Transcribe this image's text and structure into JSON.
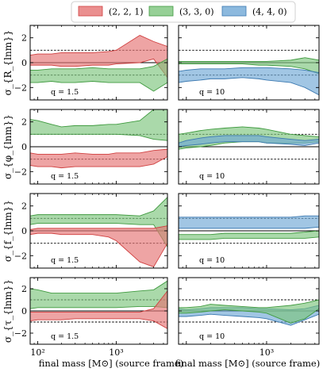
{
  "legend": {
    "entries": [
      {
        "label": "(2, 2, 1)",
        "color": "#e57373"
      },
      {
        "label": "(3, 3, 0)",
        "color": "#7cc47c"
      },
      {
        "label": "(4, 4, 0)",
        "color": "#6fa8d6"
      }
    ]
  },
  "chart_data": {
    "type": "area",
    "x": [
      80,
      100,
      150,
      200,
      300,
      500,
      800,
      1000,
      2000,
      3000,
      4500
    ],
    "xscale": "log",
    "xlim": [
      80,
      4500
    ],
    "ylim": [
      -3,
      3
    ],
    "yticks": [
      -2,
      0,
      2
    ],
    "xticks": [
      {
        "value": 100,
        "label": "10²"
      },
      {
        "value": 1000,
        "label": "10³"
      }
    ],
    "xlabel": "final mass [M⊙] (source frame)",
    "grid": false,
    "legend_position": "top-center",
    "columns": [
      "q = 1.5",
      "q = 10"
    ],
    "rows": [
      {
        "ylabel": "σ_{R_{lnm}}",
        "refs": [
          1,
          0,
          -1
        ],
        "panels": [
          {
            "annotation": "q = 1.5",
            "series": [
              {
                "name": "(2, 2, 1)",
                "lower": [
                  -0.2,
                  -0.2,
                  -0.2,
                  -0.3,
                  -0.3,
                  -0.2,
                  -0.2,
                  -0.1,
                  0.0,
                  0.3,
                  -1.2
                ],
                "upper": [
                  0.6,
                  0.7,
                  0.7,
                  0.8,
                  0.8,
                  0.8,
                  0.9,
                  1.0,
                  2.2,
                  1.7,
                  1.3
                ]
              },
              {
                "name": "(3, 3, 0)",
                "lower": [
                  -1.6,
                  -1.6,
                  -1.5,
                  -1.6,
                  -1.6,
                  -1.5,
                  -1.6,
                  -1.6,
                  -1.6,
                  -2.3,
                  -1.6
                ],
                "upper": [
                  -0.6,
                  -0.6,
                  -0.5,
                  -0.5,
                  -0.5,
                  -0.4,
                  -0.5,
                  -0.5,
                  -0.5,
                  -0.3,
                  0.3
                ]
              }
            ]
          },
          {
            "annotation": "q = 10",
            "series": [
              {
                "name": "(3, 3, 0)",
                "lower": [
                  -0.1,
                  -0.1,
                  -0.1,
                  -0.1,
                  -0.1,
                  -0.1,
                  -0.2,
                  -0.2,
                  -0.3,
                  -0.5,
                  -0.9
                ],
                "upper": [
                  0.1,
                  0.1,
                  0.1,
                  0.1,
                  0.1,
                  0.1,
                  0.1,
                  0.1,
                  0.2,
                  0.4,
                  0.2
                ]
              },
              {
                "name": "(4, 4, 0)",
                "lower": [
                  -1.6,
                  -1.5,
                  -1.4,
                  -1.3,
                  -1.3,
                  -1.2,
                  -1.3,
                  -1.4,
                  -1.6,
                  -2.0,
                  -2.6
                ],
                "upper": [
                  -0.7,
                  -0.6,
                  -0.5,
                  -0.5,
                  -0.5,
                  -0.4,
                  -0.4,
                  -0.4,
                  -0.5,
                  -0.6,
                  -0.8
                ]
              }
            ]
          }
        ]
      },
      {
        "ylabel": "σ_{φ_{lnm}}",
        "refs": [
          1,
          0,
          -1
        ],
        "panels": [
          {
            "annotation": "q = 1.5",
            "series": [
              {
                "name": "(3, 3, 0)",
                "lower": [
                  1.0,
                  1.0,
                  1.0,
                  1.0,
                  1.0,
                  1.0,
                  1.0,
                  1.0,
                  0.9,
                  0.6,
                  0.5
                ],
                "upper": [
                  2.2,
                  2.1,
                  1.8,
                  1.6,
                  1.7,
                  1.7,
                  1.8,
                  1.8,
                  2.1,
                  3.0,
                  3.2
                ]
              },
              {
                "name": "(2, 2, 1)",
                "lower": [
                  -1.5,
                  -1.6,
                  -1.6,
                  -1.7,
                  -1.6,
                  -1.6,
                  -1.6,
                  -1.6,
                  -1.6,
                  -1.4,
                  -0.8
                ],
                "upper": [
                  -0.5,
                  -0.6,
                  -0.6,
                  -0.6,
                  -0.5,
                  -0.6,
                  -0.6,
                  -0.5,
                  -0.5,
                  -0.3,
                  -0.2
                ]
              }
            ]
          },
          {
            "annotation": "q = 10",
            "series": [
              {
                "name": "(3, 3, 0)",
                "lower": [
                  -0.2,
                  -0.1,
                  0.0,
                  0.1,
                  0.3,
                  0.4,
                  0.4,
                  0.3,
                  0.3,
                  0.3,
                  0.4
                ],
                "upper": [
                  1.0,
                  1.1,
                  1.3,
                  1.4,
                  1.5,
                  1.6,
                  1.5,
                  1.4,
                  1.0,
                  0.9,
                  0.8
                ]
              },
              {
                "name": "(4, 4, 0)",
                "lower": [
                  0.0,
                  0.1,
                  0.2,
                  0.3,
                  0.4,
                  0.4,
                  0.4,
                  0.3,
                  0.2,
                  0.1,
                  0.3
                ],
                "upper": [
                  0.3,
                  0.5,
                  0.7,
                  0.8,
                  0.9,
                  0.9,
                  0.9,
                  0.8,
                  0.6,
                  0.5,
                  0.6
                ]
              }
            ]
          }
        ]
      },
      {
        "ylabel": "σ_{f_{lnm}}",
        "refs": [
          1,
          0,
          -1
        ],
        "panels": [
          {
            "annotation": "q = 1.5",
            "series": [
              {
                "name": "(3, 3, 0)",
                "lower": [
                  0.5,
                  0.6,
                  0.6,
                  0.6,
                  0.6,
                  0.6,
                  0.6,
                  0.6,
                  0.5,
                  0.5,
                  -1.3
                ],
                "upper": [
                  1.2,
                  1.3,
                  1.3,
                  1.3,
                  1.3,
                  1.3,
                  1.3,
                  1.3,
                  1.2,
                  1.6,
                  2.7
                ]
              },
              {
                "name": "(2, 2, 1)",
                "lower": [
                  -0.3,
                  -0.2,
                  -0.2,
                  -0.3,
                  -0.3,
                  -0.3,
                  -0.5,
                  -0.8,
                  -2.5,
                  -2.9,
                  -1.0
                ],
                "upper": [
                  0.1,
                  0.2,
                  0.2,
                  0.2,
                  0.2,
                  0.2,
                  0.2,
                  0.2,
                  0.2,
                  0.2,
                  0.4
                ]
              }
            ]
          },
          {
            "annotation": "q = 10",
            "series": [
              {
                "name": "(4, 4, 0)",
                "lower": [
                  0.2,
                  0.2,
                  0.2,
                  0.2,
                  0.2,
                  0.2,
                  0.2,
                  0.2,
                  0.2,
                  0.2,
                  0.3
                ],
                "upper": [
                  1.1,
                  1.1,
                  1.1,
                  1.1,
                  1.1,
                  1.1,
                  1.1,
                  1.1,
                  1.1,
                  1.2,
                  1.2
                ]
              },
              {
                "name": "(3, 3, 0)",
                "lower": [
                  -0.7,
                  -0.7,
                  -0.7,
                  -0.7,
                  -0.6,
                  -0.6,
                  -0.6,
                  -0.6,
                  -0.6,
                  -0.6,
                  -0.5
                ],
                "upper": [
                  -0.3,
                  -0.3,
                  -0.3,
                  -0.3,
                  -0.2,
                  -0.2,
                  -0.2,
                  -0.2,
                  -0.2,
                  -0.1,
                  0.0
                ]
              }
            ]
          }
        ]
      },
      {
        "ylabel": "σ_{τ_{lnm}}",
        "refs": [
          1,
          0,
          -1
        ],
        "panels": [
          {
            "annotation": "q = 1.5",
            "series": [
              {
                "name": "(3, 3, 0)",
                "lower": [
                  0.2,
                  0.3,
                  0.3,
                  0.3,
                  0.3,
                  0.3,
                  0.3,
                  0.3,
                  0.4,
                  0.4,
                  0.3
                ],
                "upper": [
                  2.0,
                  1.9,
                  1.6,
                  1.6,
                  1.6,
                  1.6,
                  1.6,
                  1.6,
                  1.8,
                  1.9,
                  2.7
                ]
              },
              {
                "name": "(2, 2, 1)",
                "lower": [
                  -0.9,
                  -0.8,
                  -0.8,
                  -0.8,
                  -0.7,
                  -0.7,
                  -0.7,
                  -0.7,
                  -0.7,
                  -0.9,
                  -1.6
                ],
                "upper": [
                  -0.1,
                  -0.1,
                  -0.1,
                  -0.1,
                  -0.1,
                  -0.1,
                  -0.1,
                  -0.1,
                  -0.1,
                  0.2,
                  1.8
                ]
              }
            ]
          },
          {
            "annotation": "q = 10",
            "series": [
              {
                "name": "(4, 4, 0)",
                "lower": [
                  -0.5,
                  -0.5,
                  -0.4,
                  -0.3,
                  -0.4,
                  -0.5,
                  -0.6,
                  -0.7,
                  -1.3,
                  -0.8,
                  -0.3
                ],
                "upper": [
                  0.2,
                  0.1,
                  0.2,
                  0.3,
                  0.3,
                  0.3,
                  0.2,
                  0.2,
                  0.1,
                  0.2,
                  0.5
                ]
              },
              {
                "name": "(3, 3, 0)",
                "lower": [
                  -0.2,
                  -0.2,
                  -0.1,
                  0.0,
                  0.1,
                  0.0,
                  -0.1,
                  -0.2,
                  -1.1,
                  -0.7,
                  0.2
                ],
                "upper": [
                  0.3,
                  0.3,
                  0.4,
                  0.6,
                  0.5,
                  0.4,
                  0.3,
                  0.3,
                  0.5,
                  0.7,
                  1.0
                ]
              }
            ]
          }
        ]
      }
    ]
  }
}
